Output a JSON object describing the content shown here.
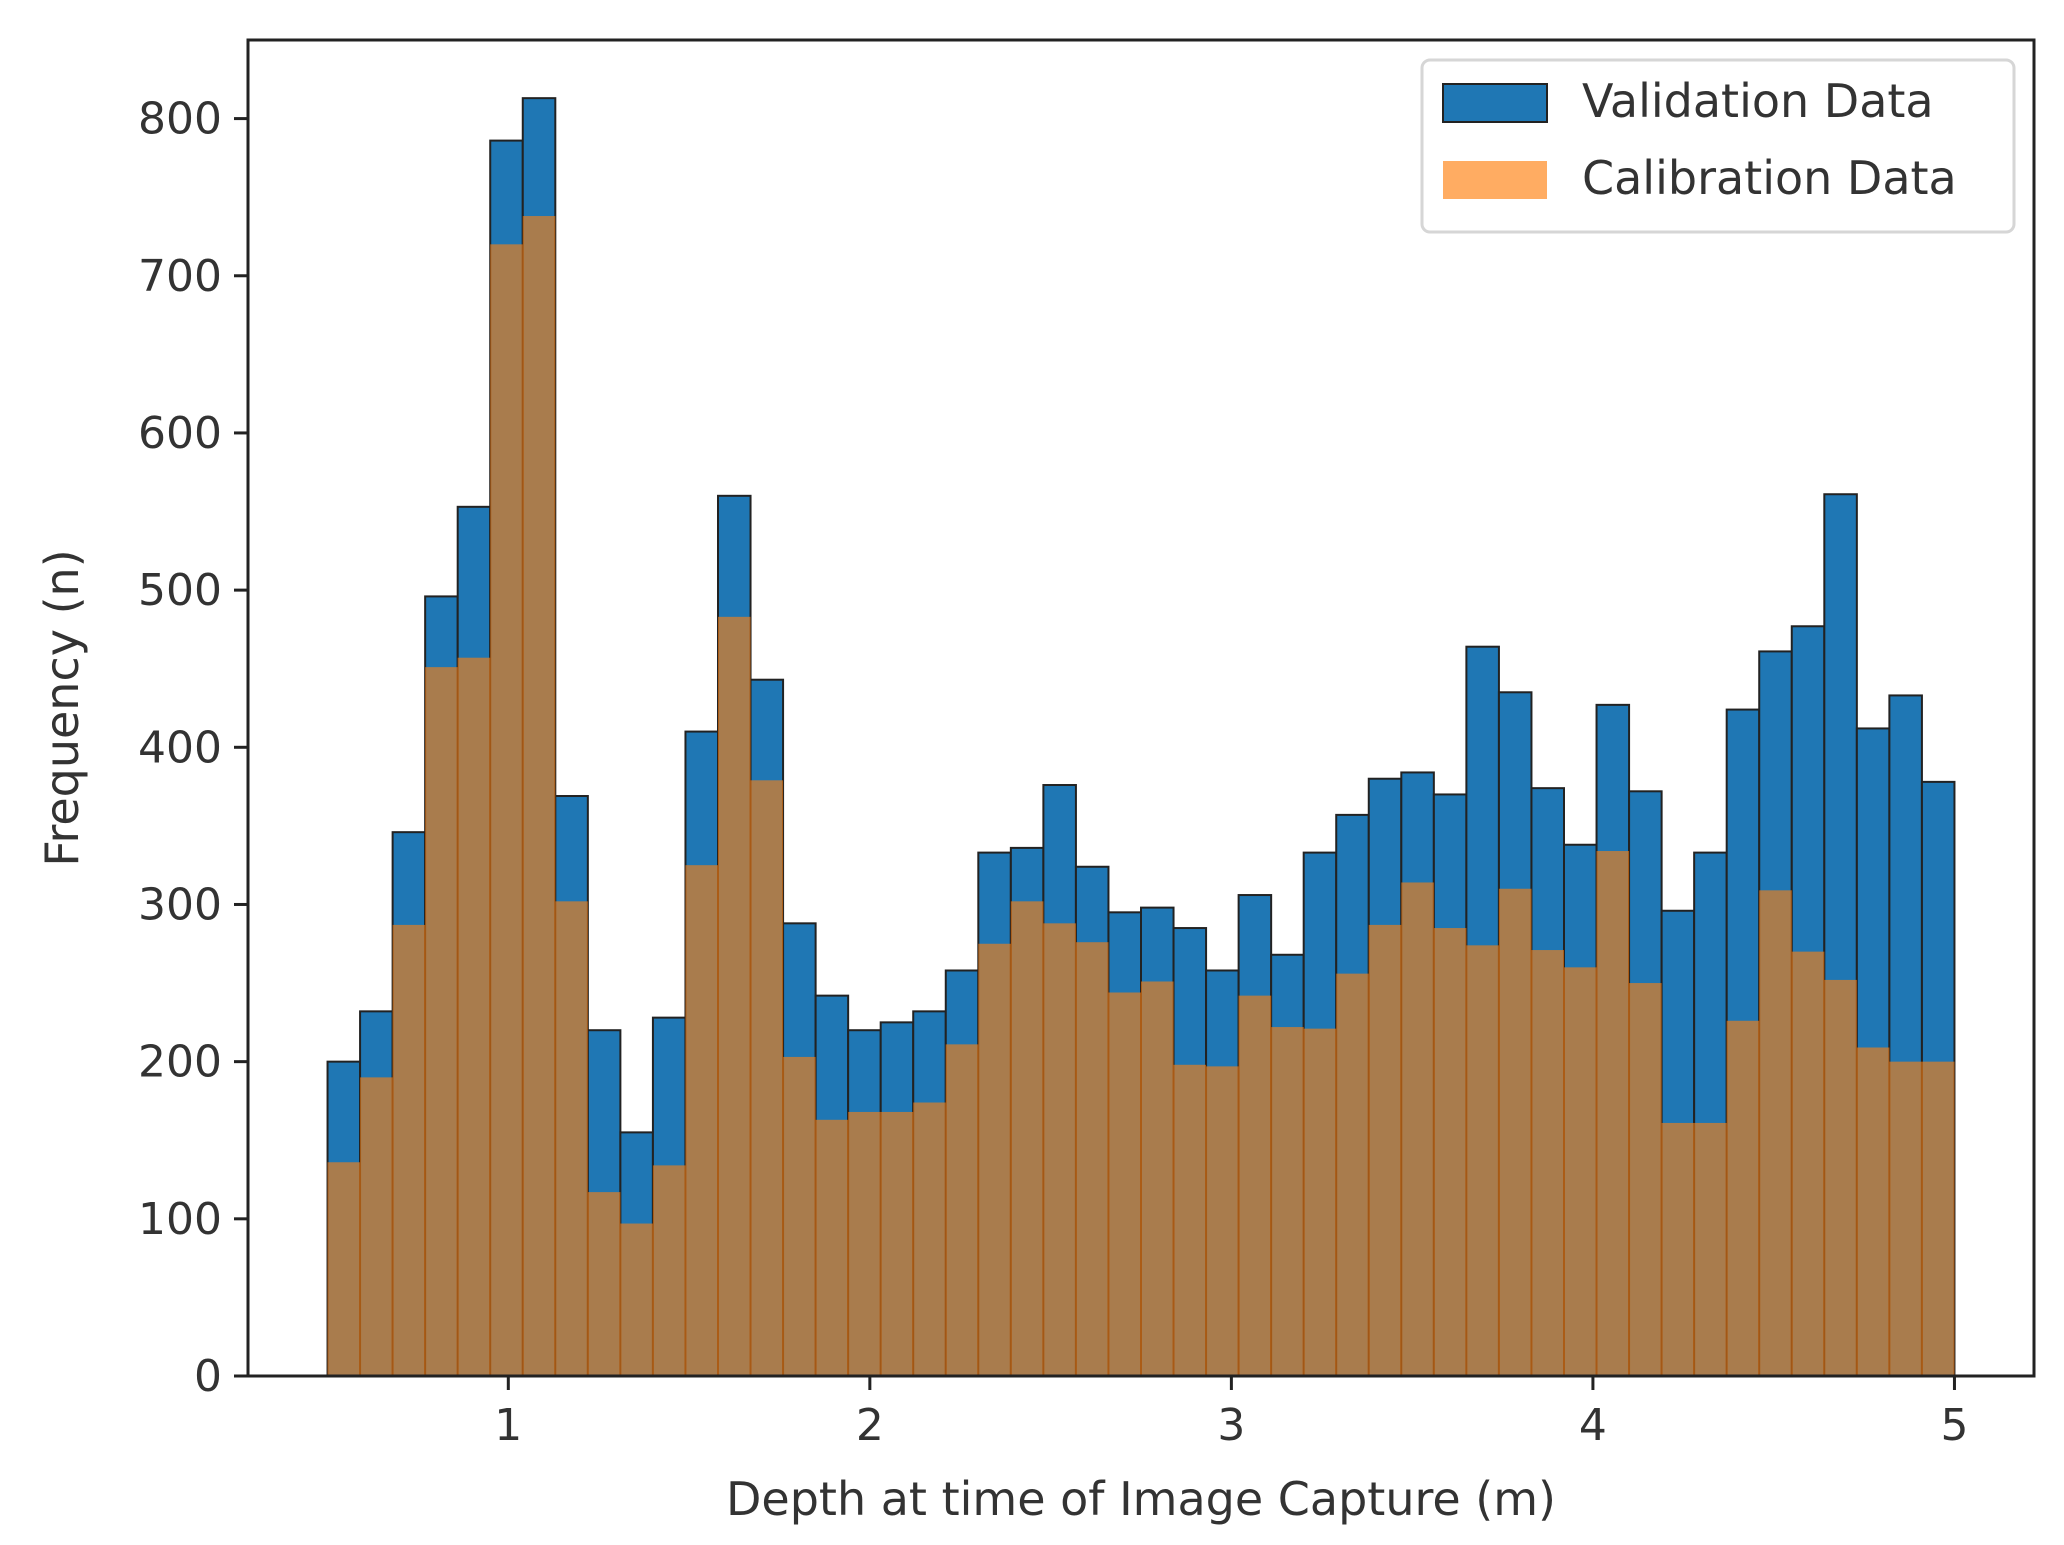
{
  "chart_data": {
    "type": "bar",
    "title": "",
    "xlabel": "Depth at time of Image Capture (m)",
    "ylabel": "Frequency (n)",
    "xlim": [
      0.28,
      5.22
    ],
    "ylim": [
      0,
      850
    ],
    "xticks": [
      1,
      2,
      3,
      4,
      5
    ],
    "yticks": [
      0,
      100,
      200,
      300,
      400,
      500,
      600,
      700,
      800
    ],
    "grid": false,
    "legend_position": "top-right",
    "bin_start": 0.5,
    "bin_width": 0.09,
    "series": [
      {
        "name": "Validation Data",
        "color": "#1f77b4",
        "values": [
          200,
          232,
          346,
          496,
          553,
          786,
          813,
          369,
          220,
          155,
          228,
          410,
          560,
          443,
          288,
          242,
          220,
          225,
          232,
          258,
          333,
          336,
          376,
          324,
          295,
          298,
          285,
          258,
          306,
          268,
          333,
          357,
          380,
          384,
          370,
          464,
          435,
          374,
          338,
          427,
          372,
          296,
          333,
          424,
          461,
          477,
          561,
          412,
          433,
          378
        ]
      },
      {
        "name": "Calibration Data",
        "color": "#ff7f0e",
        "values": [
          136,
          190,
          287,
          451,
          457,
          720,
          738,
          302,
          117,
          97,
          134,
          325,
          483,
          379,
          203,
          163,
          168,
          168,
          174,
          211,
          275,
          302,
          288,
          276,
          244,
          251,
          198,
          197,
          242,
          222,
          221,
          256,
          287,
          314,
          285,
          274,
          310,
          271,
          260,
          334,
          250,
          161,
          161,
          226,
          309,
          270,
          252,
          209,
          200,
          200
        ]
      }
    ]
  }
}
